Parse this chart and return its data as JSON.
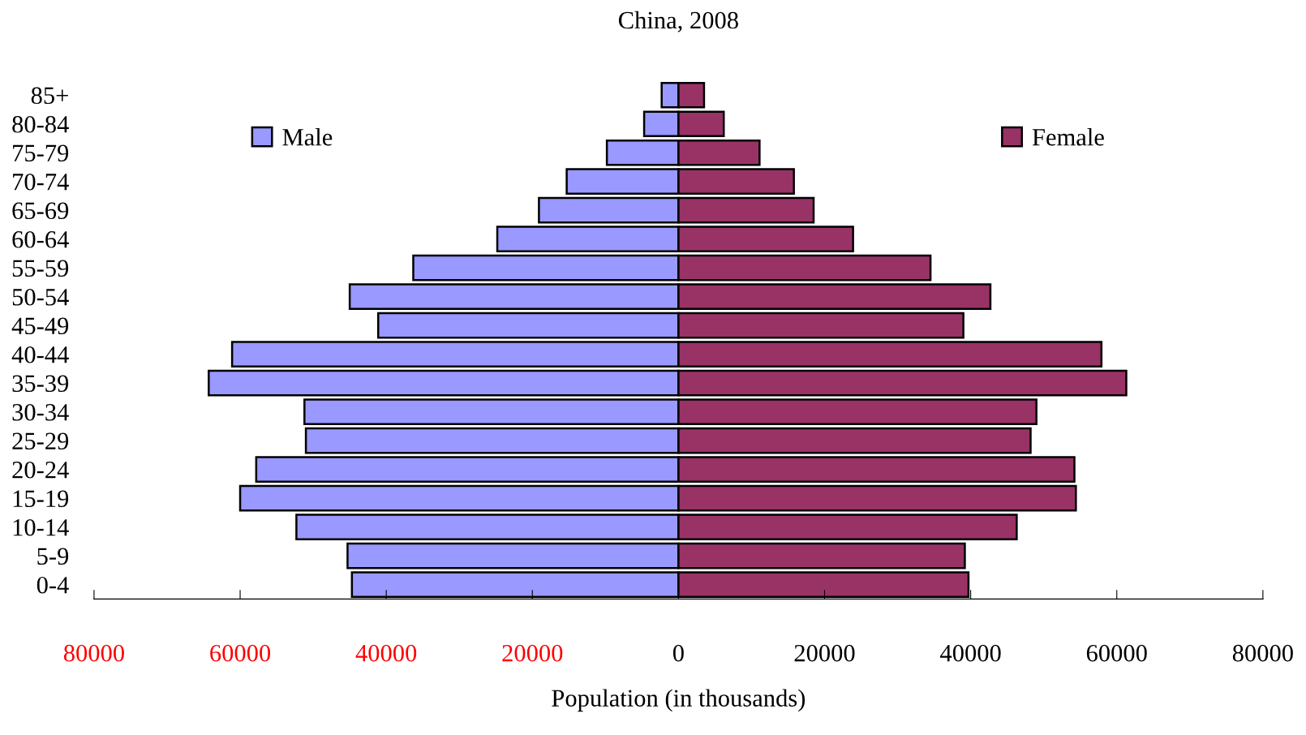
{
  "chart_data": {
    "type": "bar",
    "orientation": "horizontal",
    "title": "China, 2008",
    "xlabel": "Population (in thousands)",
    "categories": [
      "85+",
      "80-84",
      "75-79",
      "70-74",
      "65-69",
      "60-64",
      "55-59",
      "50-54",
      "45-49",
      "40-44",
      "35-39",
      "30-34",
      "25-29",
      "20-24",
      "15-19",
      "10-14",
      "5-9",
      "0-4"
    ],
    "series": [
      {
        "name": "Male",
        "color": "#9999ff",
        "values": [
          -2300,
          -4700,
          -9800,
          -15300,
          -19100,
          -24800,
          -36300,
          -45000,
          -41100,
          -61100,
          -64300,
          -51200,
          -51000,
          -57800,
          -60000,
          -52300,
          -45300,
          -44700
        ]
      },
      {
        "name": "Female",
        "color": "#993366",
        "values": [
          3500,
          6200,
          11100,
          15800,
          18500,
          23900,
          34500,
          42700,
          39000,
          57900,
          61300,
          49000,
          48200,
          54200,
          54400,
          46300,
          39200,
          39700
        ]
      }
    ],
    "xlim": [
      -80000,
      80000
    ],
    "xticks": [
      {
        "value": -80000,
        "label": "80000"
      },
      {
        "value": -60000,
        "label": "60000"
      },
      {
        "value": -40000,
        "label": "40000"
      },
      {
        "value": -20000,
        "label": "20000"
      },
      0,
      20000,
      40000,
      60000,
      80000
    ],
    "legend": "top",
    "grid": false,
    "stacked": true
  }
}
